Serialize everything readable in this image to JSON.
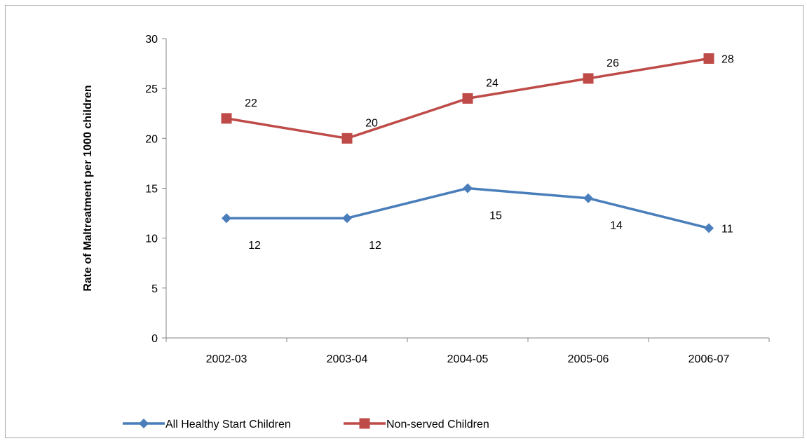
{
  "chart_data": {
    "type": "line",
    "title": "",
    "xlabel": "",
    "ylabel": "Rate of Maltreatment per 1000 children",
    "ylim": [
      0,
      30
    ],
    "yticks": [
      0,
      5,
      10,
      15,
      20,
      25,
      30
    ],
    "categories": [
      "2002-03",
      "2003-04",
      "2004-05",
      "2005-06",
      "2006-07"
    ],
    "grid": false,
    "legend_position": "bottom",
    "series": [
      {
        "name": "All Healthy Start Children",
        "values": [
          12,
          12,
          15,
          14,
          11
        ],
        "labels": [
          "12",
          "12",
          "15",
          "14",
          "11"
        ],
        "color": "#4a7ebb",
        "marker": "diamond"
      },
      {
        "name": "Non-served Children",
        "values": [
          22,
          20,
          24,
          26,
          28
        ],
        "labels": [
          "22",
          "20",
          "24",
          "26",
          "28"
        ],
        "color": "#be4b48",
        "marker": "square"
      }
    ]
  }
}
